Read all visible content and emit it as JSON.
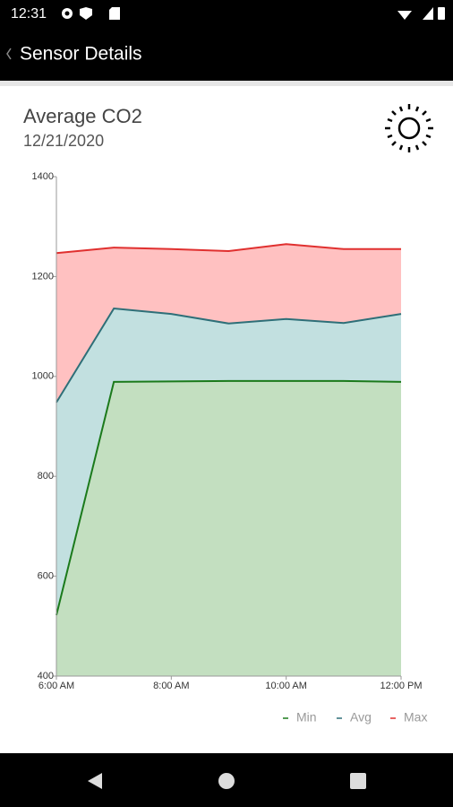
{
  "status_bar": {
    "time": "12:31"
  },
  "header": {
    "title": "Sensor Details"
  },
  "chart_data": {
    "type": "area",
    "title": "Average CO2",
    "subtitle": "12/21/2020",
    "x": [
      6,
      7,
      8,
      9,
      10,
      11,
      12
    ],
    "xlim": [
      6,
      12
    ],
    "xticks": [
      {
        "value": 6,
        "label": "6:00 AM"
      },
      {
        "value": 8,
        "label": "8:00 AM"
      },
      {
        "value": 10,
        "label": "10:00 AM"
      },
      {
        "value": 12,
        "label": "12:00 PM"
      }
    ],
    "ylim": [
      400,
      1400
    ],
    "yticks": [
      400,
      600,
      800,
      1000,
      1200,
      1400
    ],
    "legend": "bottom-right",
    "series": [
      {
        "name": "Min",
        "color": "#1b7a1b",
        "fill": "#c3dfc0",
        "values": [
          522,
          989,
          990,
          991,
          991,
          991,
          989
        ]
      },
      {
        "name": "Avg",
        "color": "#2e6f78",
        "fill": "#c2e0e0",
        "values": [
          948,
          1136,
          1125,
          1106,
          1115,
          1107,
          1125
        ]
      },
      {
        "name": "Max",
        "color": "#e0302f",
        "fill": "#ffc1c1",
        "values": [
          1247,
          1258,
          1255,
          1251,
          1265,
          1255,
          1255
        ]
      }
    ]
  }
}
